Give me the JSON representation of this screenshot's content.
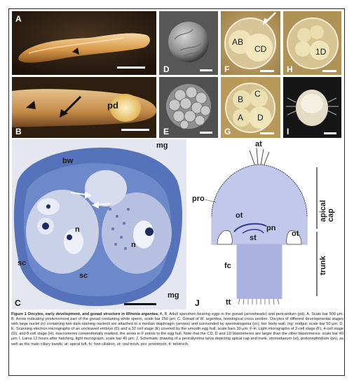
{
  "panels": {
    "A": {
      "label": "A"
    },
    "B": {
      "label": "B",
      "pd": "pd"
    },
    "C": {
      "label": "C",
      "bw": "bw",
      "mg_top": "mg",
      "n1": "n",
      "n2": "n",
      "sc1": "sc",
      "sc2": "sc",
      "mg_bottom": "mg"
    },
    "D": {
      "label": "D"
    },
    "E": {
      "label": "E"
    },
    "F": {
      "label": "F",
      "ab": "AB",
      "cd": "CD"
    },
    "G": {
      "label": "G",
      "b": "B",
      "c": "C",
      "a": "A",
      "d": "D"
    },
    "H": {
      "label": "H",
      "one_d": "1D"
    },
    "I": {
      "label": "I"
    },
    "J": {
      "label": "J",
      "at": "at",
      "pro": "pro",
      "ot_left": "ot",
      "pn": "pn",
      "st": "st",
      "ot_right": "ot",
      "fc": "fc",
      "tt": "tt",
      "apical_cap": "apical cap",
      "trunk": "trunk"
    }
  },
  "caption": {
    "title": "Figure 1 Oocytes, early development, and gonad structure in ",
    "species": "Wirenia argentea",
    "title_end": ".",
    "body": " A, B. Adult specimen bearing eggs in the gonad (arrowheads) and pericardium (pd). A. Scale bar 500 µm; B. Arrow indicating posteriormost part of the gonad containing white sperm, scale bar 250 µm; C. Gonad of W. argentea, histological cross section. Oocytes of different developmental stages with large nuclei (n) containing two dark-staining nucleoli are attached to a median diaphragm (arrows) and surrounded by spermatogonia (sc); bw: body wall, mg: midgut; scale bar 50 µm; D, E. Scanning electron micrographs of an uncleaved embryo (D) and a 32 cell stage (E) covered by the smooth egg hull, scale bars 30 µm; F-H. Light micrographs of 2-cell stage (F), 4-cell stage (G), and 8-cell stage (H), macromeres conventionally marked, the arrow in F points to the egg hull. Note that the CD, D and 1D blastomeres are larger than the other blastomeres; scale bar 40 µm; I. Larva 12 hours after hatching, light micrograph, scale bar 40 µm; J. Schematic drawing of a pericalymma larva depicting apical cap and trunk, stomodaeum (st), protonephridium (pn), as well as the main ciliary bands; at: apical tuft, fc: foot ciliation, ot: oral troch, pro: prototroch, tt: telotroch."
  },
  "colors": {
    "frame": "#2b2b2b",
    "histo_stain": "#4f6db3",
    "larva_fill": "#b9c0e6",
    "background": "#ffffff"
  }
}
